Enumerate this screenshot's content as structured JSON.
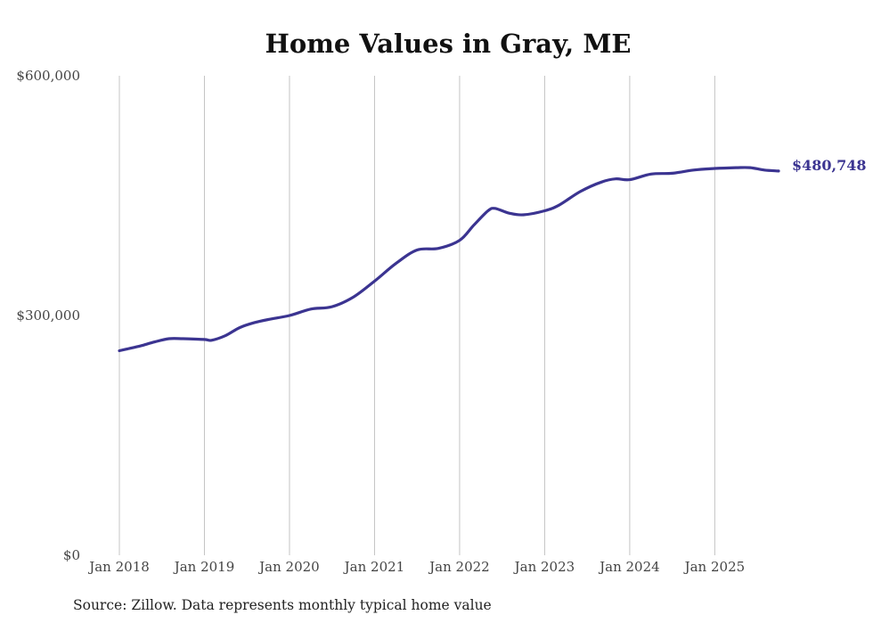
{
  "chart_data": {
    "type": "line",
    "title": "Home Values in Gray, ME",
    "source": "Source: Zillow. Data represents monthly typical home value",
    "xlabel": "",
    "ylabel": "",
    "ylim": [
      0,
      600000
    ],
    "y_ticks": [
      {
        "value": 0,
        "label": "$0"
      },
      {
        "value": 300000,
        "label": "$300,000"
      },
      {
        "value": 600000,
        "label": "$600,000"
      }
    ],
    "x_range": [
      "2018-01",
      "2025-10"
    ],
    "x_ticks": [
      {
        "date": "2018-01",
        "label": "Jan 2018"
      },
      {
        "date": "2019-01",
        "label": "Jan 2019"
      },
      {
        "date": "2020-01",
        "label": "Jan 2020"
      },
      {
        "date": "2021-01",
        "label": "Jan 2021"
      },
      {
        "date": "2022-01",
        "label": "Jan 2022"
      },
      {
        "date": "2023-01",
        "label": "Jan 2023"
      },
      {
        "date": "2024-01",
        "label": "Jan 2024"
      },
      {
        "date": "2025-01",
        "label": "Jan 2025"
      }
    ],
    "grid": {
      "vertical": true,
      "horizontal": false
    },
    "line_color": "#3b3491",
    "end_label": "$480,748",
    "series": [
      {
        "points": [
          [
            "2018-01",
            256000
          ],
          [
            "2018-02",
            258000
          ],
          [
            "2018-04",
            262000
          ],
          [
            "2018-06",
            267000
          ],
          [
            "2018-08",
            271000
          ],
          [
            "2018-10",
            271000
          ],
          [
            "2019-01",
            270000
          ],
          [
            "2019-02",
            269000
          ],
          [
            "2019-04",
            275000
          ],
          [
            "2019-06",
            285000
          ],
          [
            "2019-08",
            291000
          ],
          [
            "2019-10",
            295000
          ],
          [
            "2020-01",
            300000
          ],
          [
            "2020-04",
            308000
          ],
          [
            "2020-07",
            311000
          ],
          [
            "2020-10",
            323000
          ],
          [
            "2021-01",
            343000
          ],
          [
            "2021-04",
            365000
          ],
          [
            "2021-07",
            382000
          ],
          [
            "2021-10",
            384000
          ],
          [
            "2022-01",
            394000
          ],
          [
            "2022-03",
            413000
          ],
          [
            "2022-05",
            431000
          ],
          [
            "2022-06",
            434000
          ],
          [
            "2022-08",
            428000
          ],
          [
            "2022-10",
            426000
          ],
          [
            "2023-01",
            431000
          ],
          [
            "2023-03",
            438000
          ],
          [
            "2023-06",
            455000
          ],
          [
            "2023-09",
            467000
          ],
          [
            "2023-11",
            471000
          ],
          [
            "2024-01",
            470000
          ],
          [
            "2024-04",
            477000
          ],
          [
            "2024-07",
            478000
          ],
          [
            "2024-10",
            482000
          ],
          [
            "2025-01",
            484000
          ],
          [
            "2025-04",
            485000
          ],
          [
            "2025-06",
            485000
          ],
          [
            "2025-08",
            482000
          ],
          [
            "2025-10",
            480748
          ]
        ]
      }
    ]
  }
}
